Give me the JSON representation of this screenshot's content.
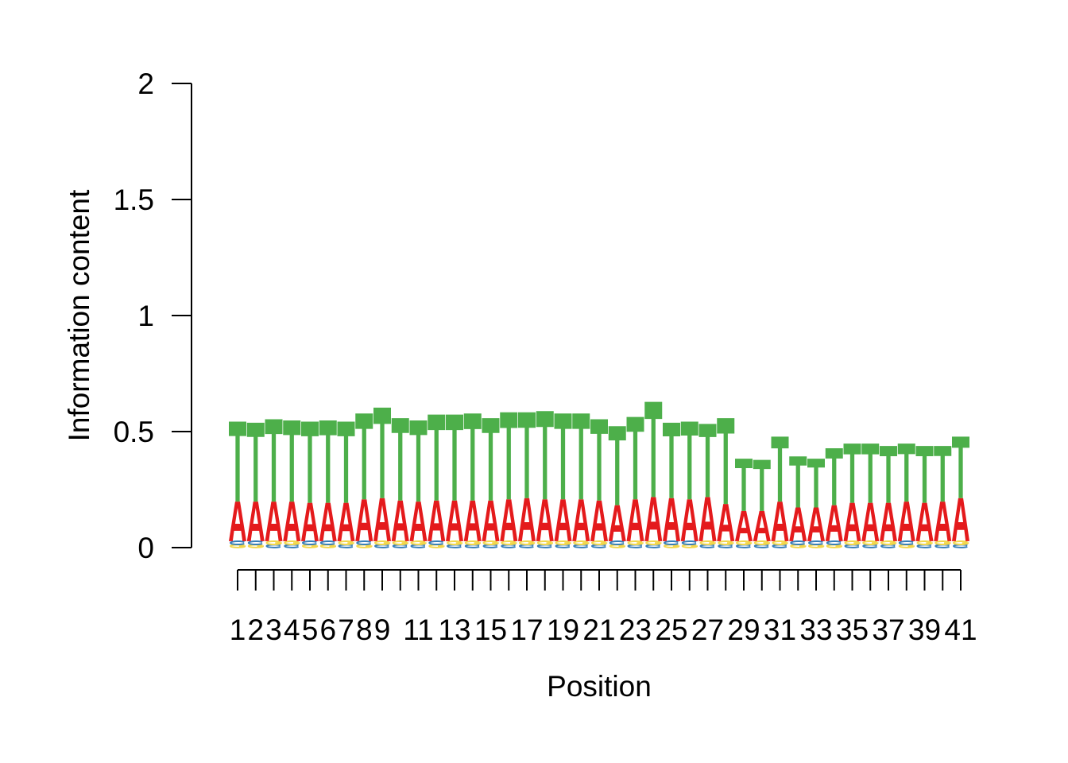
{
  "chart_data": {
    "type": "sequence-logo",
    "title": "",
    "xlabel": "Position",
    "ylabel": "Information content",
    "ylim": [
      0,
      2
    ],
    "yticks": [
      0,
      0.5,
      1,
      1.5,
      2
    ],
    "ytick_labels": [
      "0",
      "0.5",
      "1",
      "1.5",
      "2"
    ],
    "xtick_labels": [
      "1",
      "2",
      "3",
      "4",
      "5",
      "6",
      "7",
      "8",
      "9",
      "11",
      "13",
      "15",
      "17",
      "19",
      "21",
      "23",
      "25",
      "27",
      "29",
      "31",
      "33",
      "35",
      "37",
      "39",
      "41"
    ],
    "xtick_label_positions": [
      1,
      2,
      3,
      4,
      5,
      6,
      7,
      8,
      9,
      11,
      13,
      15,
      17,
      19,
      21,
      23,
      25,
      27,
      29,
      31,
      33,
      35,
      37,
      39,
      41
    ],
    "colors": {
      "A": "#e41a1c",
      "C": "#377eb8",
      "G": "#f2d64b",
      "T": "#4daf4a"
    },
    "positions": [
      {
        "pos": 1,
        "stack": [
          [
            "G",
            0.013
          ],
          [
            "C",
            0.015
          ],
          [
            "A",
            0.17
          ],
          [
            "T",
            0.345
          ]
        ]
      },
      {
        "pos": 2,
        "stack": [
          [
            "G",
            0.013
          ],
          [
            "C",
            0.015
          ],
          [
            "A",
            0.17
          ],
          [
            "T",
            0.34
          ]
        ]
      },
      {
        "pos": 3,
        "stack": [
          [
            "C",
            0.013
          ],
          [
            "G",
            0.015
          ],
          [
            "A",
            0.17
          ],
          [
            "T",
            0.355
          ]
        ]
      },
      {
        "pos": 4,
        "stack": [
          [
            "C",
            0.013
          ],
          [
            "G",
            0.015
          ],
          [
            "A",
            0.17
          ],
          [
            "T",
            0.35
          ]
        ]
      },
      {
        "pos": 5,
        "stack": [
          [
            "G",
            0.013
          ],
          [
            "C",
            0.015
          ],
          [
            "A",
            0.165
          ],
          [
            "T",
            0.35
          ]
        ]
      },
      {
        "pos": 6,
        "stack": [
          [
            "G",
            0.013
          ],
          [
            "C",
            0.015
          ],
          [
            "A",
            0.165
          ],
          [
            "T",
            0.355
          ]
        ]
      },
      {
        "pos": 7,
        "stack": [
          [
            "C",
            0.013
          ],
          [
            "G",
            0.015
          ],
          [
            "A",
            0.165
          ],
          [
            "T",
            0.35
          ]
        ]
      },
      {
        "pos": 8,
        "stack": [
          [
            "G",
            0.013
          ],
          [
            "C",
            0.015
          ],
          [
            "A",
            0.18
          ],
          [
            "T",
            0.37
          ]
        ]
      },
      {
        "pos": 9,
        "stack": [
          [
            "C",
            0.013
          ],
          [
            "G",
            0.015
          ],
          [
            "A",
            0.185
          ],
          [
            "T",
            0.39
          ]
        ]
      },
      {
        "pos": 10,
        "stack": [
          [
            "C",
            0.013
          ],
          [
            "G",
            0.015
          ],
          [
            "A",
            0.175
          ],
          [
            "T",
            0.355
          ]
        ]
      },
      {
        "pos": 11,
        "stack": [
          [
            "C",
            0.013
          ],
          [
            "G",
            0.015
          ],
          [
            "A",
            0.17
          ],
          [
            "T",
            0.35
          ]
        ]
      },
      {
        "pos": 12,
        "stack": [
          [
            "G",
            0.013
          ],
          [
            "C",
            0.015
          ],
          [
            "A",
            0.175
          ],
          [
            "T",
            0.37
          ]
        ]
      },
      {
        "pos": 13,
        "stack": [
          [
            "C",
            0.013
          ],
          [
            "G",
            0.015
          ],
          [
            "A",
            0.175
          ],
          [
            "T",
            0.37
          ]
        ]
      },
      {
        "pos": 14,
        "stack": [
          [
            "C",
            0.013
          ],
          [
            "G",
            0.015
          ],
          [
            "A",
            0.175
          ],
          [
            "T",
            0.375
          ]
        ]
      },
      {
        "pos": 15,
        "stack": [
          [
            "C",
            0.013
          ],
          [
            "G",
            0.015
          ],
          [
            "A",
            0.175
          ],
          [
            "T",
            0.355
          ]
        ]
      },
      {
        "pos": 16,
        "stack": [
          [
            "C",
            0.013
          ],
          [
            "G",
            0.015
          ],
          [
            "A",
            0.18
          ],
          [
            "T",
            0.375
          ]
        ]
      },
      {
        "pos": 17,
        "stack": [
          [
            "C",
            0.013
          ],
          [
            "G",
            0.015
          ],
          [
            "A",
            0.185
          ],
          [
            "T",
            0.37
          ]
        ]
      },
      {
        "pos": 18,
        "stack": [
          [
            "C",
            0.013
          ],
          [
            "G",
            0.015
          ],
          [
            "A",
            0.18
          ],
          [
            "T",
            0.38
          ]
        ]
      },
      {
        "pos": 19,
        "stack": [
          [
            "C",
            0.013
          ],
          [
            "G",
            0.015
          ],
          [
            "A",
            0.18
          ],
          [
            "T",
            0.37
          ]
        ]
      },
      {
        "pos": 20,
        "stack": [
          [
            "C",
            0.013
          ],
          [
            "G",
            0.015
          ],
          [
            "A",
            0.18
          ],
          [
            "T",
            0.37
          ]
        ]
      },
      {
        "pos": 21,
        "stack": [
          [
            "C",
            0.013
          ],
          [
            "G",
            0.015
          ],
          [
            "A",
            0.175
          ],
          [
            "T",
            0.35
          ]
        ]
      },
      {
        "pos": 22,
        "stack": [
          [
            "G",
            0.013
          ],
          [
            "C",
            0.015
          ],
          [
            "A",
            0.155
          ],
          [
            "T",
            0.34
          ]
        ]
      },
      {
        "pos": 23,
        "stack": [
          [
            "C",
            0.013
          ],
          [
            "G",
            0.015
          ],
          [
            "A",
            0.18
          ],
          [
            "T",
            0.355
          ]
        ]
      },
      {
        "pos": 24,
        "stack": [
          [
            "C",
            0.013
          ],
          [
            "G",
            0.015
          ],
          [
            "A",
            0.19
          ],
          [
            "T",
            0.41
          ]
        ]
      },
      {
        "pos": 25,
        "stack": [
          [
            "G",
            0.013
          ],
          [
            "C",
            0.015
          ],
          [
            "A",
            0.185
          ],
          [
            "T",
            0.325
          ]
        ]
      },
      {
        "pos": 26,
        "stack": [
          [
            "G",
            0.013
          ],
          [
            "C",
            0.015
          ],
          [
            "A",
            0.18
          ],
          [
            "T",
            0.335
          ]
        ]
      },
      {
        "pos": 27,
        "stack": [
          [
            "C",
            0.013
          ],
          [
            "G",
            0.015
          ],
          [
            "A",
            0.19
          ],
          [
            "T",
            0.315
          ]
        ]
      },
      {
        "pos": 28,
        "stack": [
          [
            "C",
            0.013
          ],
          [
            "G",
            0.015
          ],
          [
            "A",
            0.16
          ],
          [
            "T",
            0.37
          ]
        ]
      },
      {
        "pos": 29,
        "stack": [
          [
            "C",
            0.013
          ],
          [
            "G",
            0.015
          ],
          [
            "A",
            0.13
          ],
          [
            "T",
            0.225
          ]
        ]
      },
      {
        "pos": 30,
        "stack": [
          [
            "C",
            0.013
          ],
          [
            "G",
            0.015
          ],
          [
            "A",
            0.13
          ],
          [
            "T",
            0.22
          ]
        ]
      },
      {
        "pos": 31,
        "stack": [
          [
            "C",
            0.013
          ],
          [
            "G",
            0.015
          ],
          [
            "A",
            0.17
          ],
          [
            "T",
            0.28
          ]
        ]
      },
      {
        "pos": 32,
        "stack": [
          [
            "G",
            0.013
          ],
          [
            "C",
            0.015
          ],
          [
            "A",
            0.145
          ],
          [
            "T",
            0.22
          ]
        ]
      },
      {
        "pos": 33,
        "stack": [
          [
            "G",
            0.013
          ],
          [
            "C",
            0.015
          ],
          [
            "A",
            0.145
          ],
          [
            "T",
            0.21
          ]
        ]
      },
      {
        "pos": 34,
        "stack": [
          [
            "G",
            0.013
          ],
          [
            "C",
            0.015
          ],
          [
            "A",
            0.155
          ],
          [
            "T",
            0.245
          ]
        ]
      },
      {
        "pos": 35,
        "stack": [
          [
            "C",
            0.013
          ],
          [
            "G",
            0.015
          ],
          [
            "A",
            0.165
          ],
          [
            "T",
            0.255
          ]
        ]
      },
      {
        "pos": 36,
        "stack": [
          [
            "C",
            0.013
          ],
          [
            "G",
            0.015
          ],
          [
            "A",
            0.165
          ],
          [
            "T",
            0.255
          ]
        ]
      },
      {
        "pos": 37,
        "stack": [
          [
            "C",
            0.013
          ],
          [
            "G",
            0.015
          ],
          [
            "A",
            0.165
          ],
          [
            "T",
            0.245
          ]
        ]
      },
      {
        "pos": 38,
        "stack": [
          [
            "G",
            0.013
          ],
          [
            "C",
            0.015
          ],
          [
            "A",
            0.17
          ],
          [
            "T",
            0.25
          ]
        ]
      },
      {
        "pos": 39,
        "stack": [
          [
            "C",
            0.013
          ],
          [
            "G",
            0.015
          ],
          [
            "A",
            0.165
          ],
          [
            "T",
            0.245
          ]
        ]
      },
      {
        "pos": 40,
        "stack": [
          [
            "C",
            0.013
          ],
          [
            "G",
            0.015
          ],
          [
            "A",
            0.17
          ],
          [
            "T",
            0.24
          ]
        ]
      },
      {
        "pos": 41,
        "stack": [
          [
            "C",
            0.013
          ],
          [
            "G",
            0.015
          ],
          [
            "A",
            0.185
          ],
          [
            "T",
            0.265
          ]
        ]
      }
    ]
  }
}
